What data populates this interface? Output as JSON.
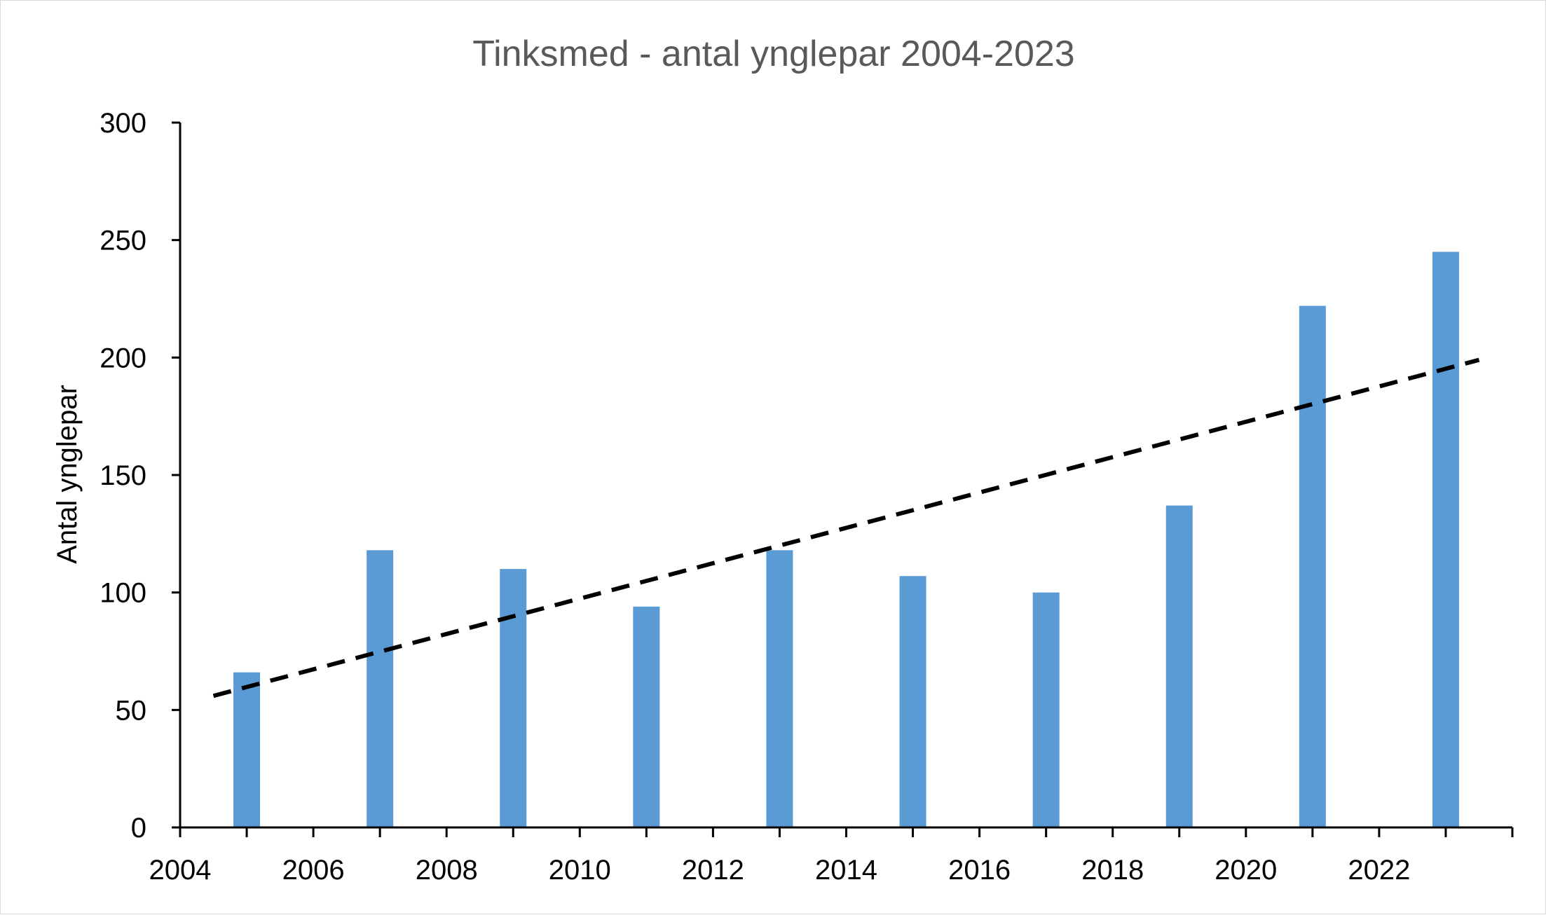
{
  "chart_data": {
    "type": "bar",
    "title": "Tinksmed - antal ynglepar 2004-2023",
    "xlabel": "",
    "ylabel": "Antal ynglepar",
    "x_range": [
      2004,
      2024
    ],
    "ylim": [
      0,
      300
    ],
    "y_ticks": [
      0,
      50,
      100,
      150,
      200,
      250,
      300
    ],
    "x_ticks": [
      2004,
      2006,
      2008,
      2010,
      2012,
      2014,
      2016,
      2018,
      2020,
      2022
    ],
    "x_tick_labels": [
      "2004",
      "2006",
      "2008",
      "2010",
      "2012",
      "2014",
      "2016",
      "2018",
      "2020",
      "2022"
    ],
    "y_tick_labels": [
      "0",
      "50",
      "100",
      "150",
      "200",
      "250",
      "300"
    ],
    "grid": false,
    "legend": "none",
    "series": [
      {
        "x": [
          2005,
          2007,
          2009,
          2011,
          2013,
          2015,
          2017,
          2019,
          2021,
          2023
        ],
        "values": [
          66,
          118,
          110,
          94,
          118,
          107,
          100,
          137,
          222,
          245
        ],
        "color": "#5B9BD5"
      }
    ],
    "trendline": {
      "type": "linear",
      "style": "dashed",
      "color": "#000000",
      "x_start": 2004.5,
      "y_start": 56,
      "x_end": 2023.5,
      "y_end": 199
    }
  }
}
